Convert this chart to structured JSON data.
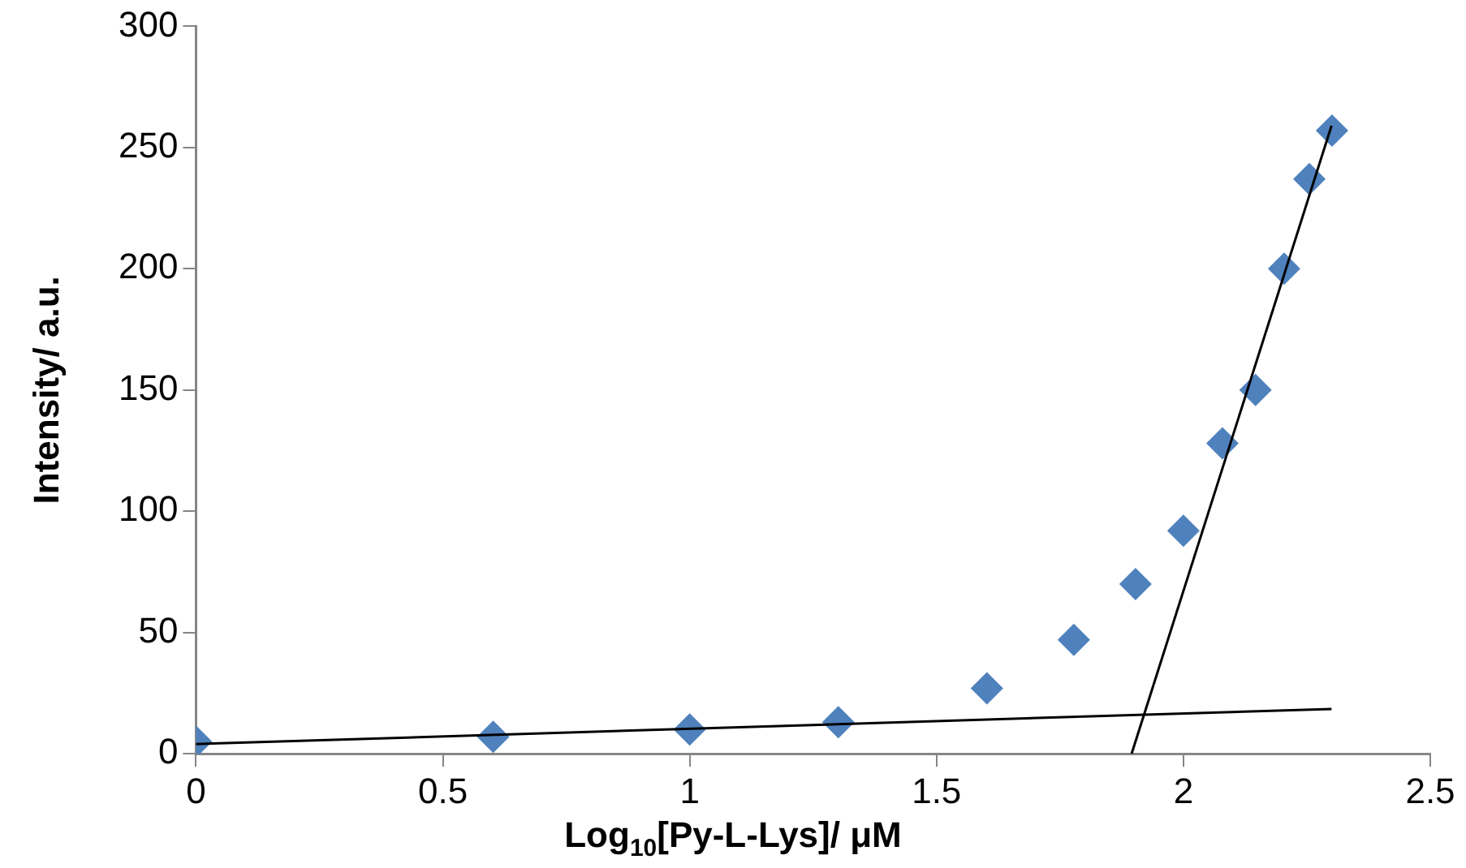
{
  "chart_data": {
    "type": "scatter",
    "xlabel": "Log$_{10}$[Py-L-Lys]/ μM",
    "ylabel": "Intensity/ a.u.",
    "xlim": [
      0,
      2.5
    ],
    "xticks": [
      0,
      0.5,
      1,
      1.5,
      2,
      2.5
    ],
    "ylim": [
      0,
      300
    ],
    "yticks": [
      0,
      50,
      100,
      150,
      200,
      250,
      300
    ],
    "grid": false,
    "legend": false,
    "marker": "diamond",
    "series": [
      {
        "color": "#4f81bd",
        "x": [
          0,
          0.602,
          1,
          1.301,
          1.602,
          1.778,
          1.903,
          2,
          2.079,
          2.146,
          2.204,
          2.255,
          2.301
        ],
        "values": [
          5,
          7,
          10,
          13,
          27,
          47,
          70,
          92,
          128,
          150,
          200,
          237,
          257
        ]
      },
      {
        "type": "line",
        "color": "#000000",
        "marker": "none",
        "x": [
          0,
          2.3
        ],
        "values": [
          4,
          18.5
        ]
      },
      {
        "type": "line",
        "color": "#000000",
        "marker": "none",
        "x": [
          1.895,
          2.3
        ],
        "values": [
          0,
          259
        ]
      }
    ]
  }
}
